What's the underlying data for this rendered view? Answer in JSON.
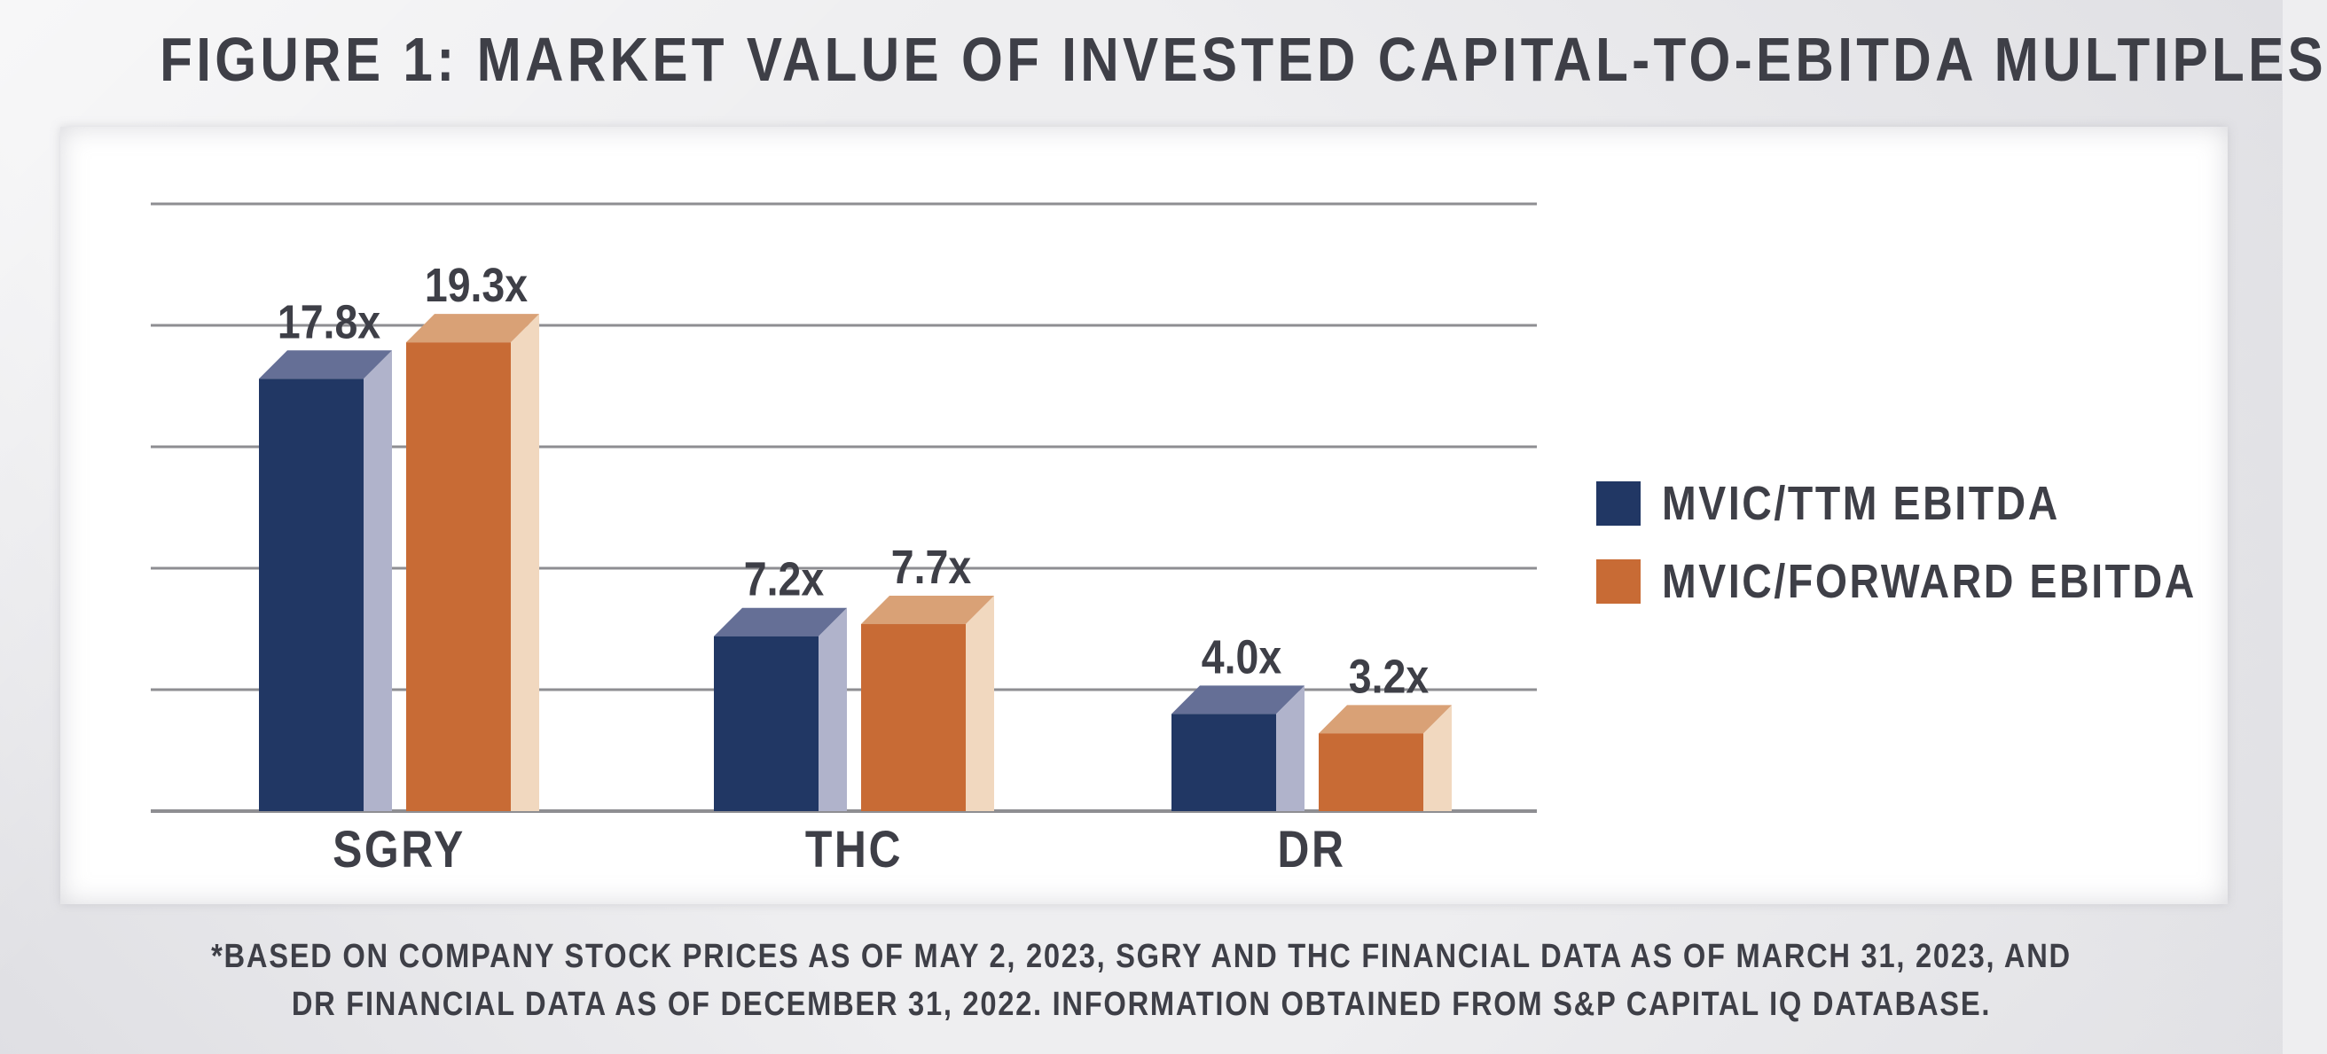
{
  "title": "FIGURE 1: MARKET VALUE OF INVESTED CAPITAL-TO-EBITDA MULTIPLES",
  "footnote": {
    "line1": "*BASED ON COMPANY STOCK PRICES AS OF MAY 2, 2023, SGRY AND THC FINANCIAL DATA AS OF MARCH 31, 2023, AND",
    "line2": "DR FINANCIAL DATA AS OF DECEMBER 31, 2022. INFORMATION OBTAINED FROM S&P CAPITAL IQ DATABASE."
  },
  "colors": {
    "ttm_front": "#213764",
    "ttm_top": "#656f96",
    "ttm_side": "#b0b3cb",
    "fwd_front": "#c86b35",
    "fwd_top": "#d9a176",
    "fwd_side": "#f1d8bf",
    "grid": "#8e8e92",
    "text": "#3e3f47"
  },
  "chart_data": {
    "type": "bar",
    "categories": [
      "SGRY",
      "THC",
      "DR"
    ],
    "series": [
      {
        "name": "MVIC/TTM EBITDA",
        "values": [
          17.8,
          7.2,
          4.0
        ],
        "labels": [
          "17.8x",
          "7.2x",
          "4.0x"
        ]
      },
      {
        "name": "MVIC/FORWARD EBITDA",
        "values": [
          19.3,
          7.7,
          3.2
        ],
        "labels": [
          "19.3x",
          "7.7x",
          "3.2x"
        ]
      }
    ],
    "title": "FIGURE 1: MARKET VALUE OF INVESTED CAPITAL-TO-EBITDA MULTIPLES",
    "xlabel": "",
    "ylabel": "",
    "ylim": [
      0,
      25
    ],
    "gridlines": [
      0,
      5,
      10,
      15,
      20,
      25
    ],
    "grid": true,
    "legend_position": "right"
  }
}
